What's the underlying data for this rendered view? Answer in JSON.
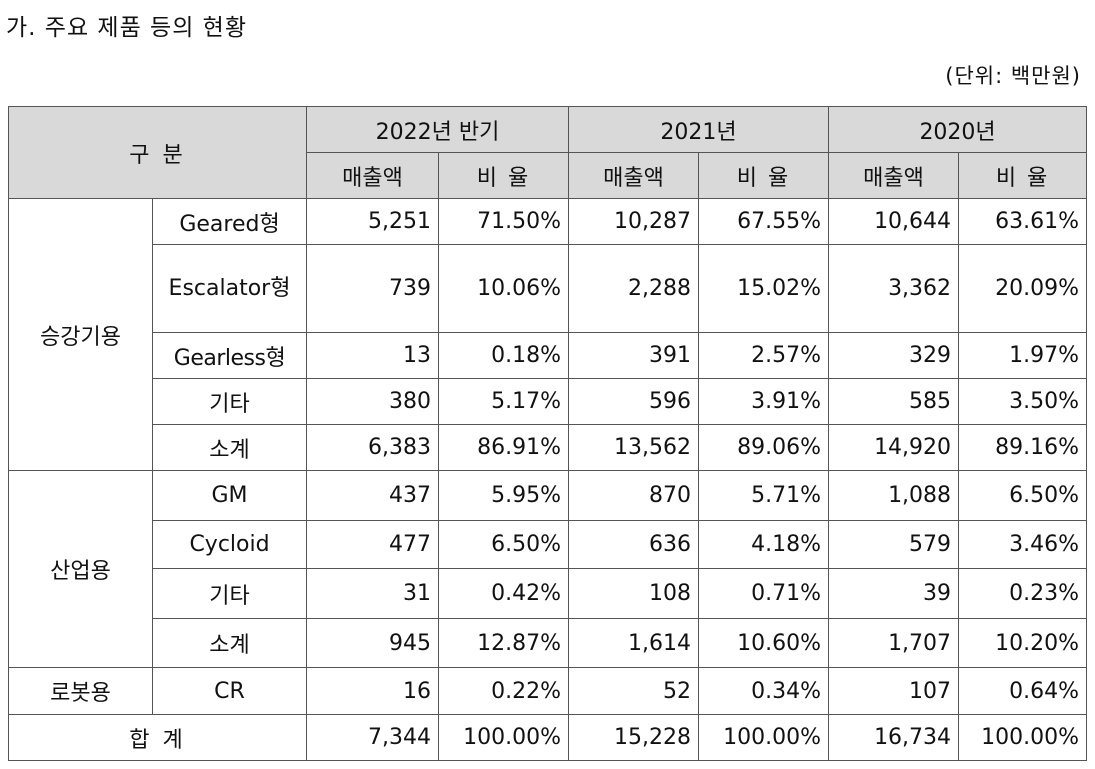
{
  "title": "가. 주요 제품 등의 현황",
  "unit": "(단위: 백만원)",
  "header": {
    "category": "구 분",
    "periods": [
      "2022년 반기",
      "2021년",
      "2020년"
    ],
    "sales": "매출액",
    "ratio": "비 율"
  },
  "groups": [
    {
      "name": "승강기용",
      "rows": [
        {
          "item": "Geared형",
          "cells": [
            "5,251",
            "71.50%",
            "10,287",
            "67.55%",
            "10,644",
            "63.61%"
          ]
        },
        {
          "item": "Escalator형",
          "cells": [
            "739",
            "10.06%",
            "2,288",
            "15.02%",
            "3,362",
            "20.09%"
          ]
        },
        {
          "item": "Gearless형",
          "cells": [
            "13",
            "0.18%",
            "391",
            "2.57%",
            "329",
            "1.97%"
          ]
        },
        {
          "item": "기타",
          "cells": [
            "380",
            "5.17%",
            "596",
            "3.91%",
            "585",
            "3.50%"
          ]
        },
        {
          "item": "소계",
          "cells": [
            "6,383",
            "86.91%",
            "13,562",
            "89.06%",
            "14,920",
            "89.16%"
          ]
        }
      ]
    },
    {
      "name": "산업용",
      "rows": [
        {
          "item": "GM",
          "cells": [
            "437",
            "5.95%",
            "870",
            "5.71%",
            "1,088",
            "6.50%"
          ]
        },
        {
          "item": "Cycloid",
          "cells": [
            "477",
            "6.50%",
            "636",
            "4.18%",
            "579",
            "3.46%"
          ]
        },
        {
          "item": "기타",
          "cells": [
            "31",
            "0.42%",
            "108",
            "0.71%",
            "39",
            "0.23%"
          ]
        },
        {
          "item": "소계",
          "cells": [
            "945",
            "12.87%",
            "1,614",
            "10.60%",
            "1,707",
            "10.20%"
          ]
        }
      ]
    },
    {
      "name": "로봇용",
      "rows": [
        {
          "item": "CR",
          "cells": [
            "16",
            "0.22%",
            "52",
            "0.34%",
            "107",
            "0.64%"
          ]
        }
      ]
    }
  ],
  "total": {
    "label": "합 계",
    "cells": [
      "7,344",
      "100.00%",
      "15,228",
      "100.00%",
      "16,734",
      "100.00%"
    ]
  }
}
